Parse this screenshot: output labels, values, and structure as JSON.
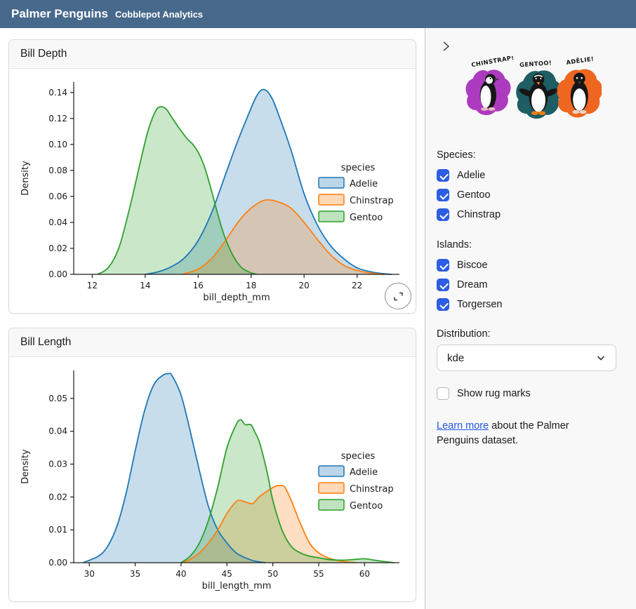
{
  "header": {
    "title": "Palmer Penguins",
    "subtitle": "Cobblepot Analytics"
  },
  "cards": [
    {
      "title": "Bill Depth"
    },
    {
      "title": "Bill Length"
    }
  ],
  "chart_data": [
    {
      "type": "area",
      "kind": "kde",
      "title": "Bill Depth",
      "xlabel": "bill_depth_mm",
      "ylabel": "Density",
      "xlim": [
        11.3,
        23.6
      ],
      "ylim": [
        0,
        0.148
      ],
      "xticks": [
        12,
        14,
        16,
        18,
        20,
        22
      ],
      "yticks": [
        0,
        0.02,
        0.04,
        0.06,
        0.08,
        0.1,
        0.12,
        0.14
      ],
      "grid": false,
      "legend": {
        "title": "species",
        "position": "center right",
        "entries": [
          "Adelie",
          "Chinstrap",
          "Gentoo"
        ]
      },
      "series": [
        {
          "name": "Adelie",
          "color": "#1f77b4",
          "points": [
            [
              14,
              0
            ],
            [
              14.5,
              0.002
            ],
            [
              15,
              0.006
            ],
            [
              15.5,
              0.013
            ],
            [
              16,
              0.026
            ],
            [
              16.5,
              0.047
            ],
            [
              17,
              0.075
            ],
            [
              17.5,
              0.103
            ],
            [
              18,
              0.128
            ],
            [
              18.2,
              0.137
            ],
            [
              18.4,
              0.142
            ],
            [
              18.6,
              0.141
            ],
            [
              18.8,
              0.135
            ],
            [
              19,
              0.125
            ],
            [
              19.5,
              0.096
            ],
            [
              20,
              0.062
            ],
            [
              20.5,
              0.038
            ],
            [
              21,
              0.022
            ],
            [
              21.5,
              0.012
            ],
            [
              22,
              0.005
            ],
            [
              22.5,
              0.002
            ],
            [
              23,
              0.0005
            ],
            [
              23.3,
              0
            ]
          ]
        },
        {
          "name": "Chinstrap",
          "color": "#ff7f0e",
          "points": [
            [
              15.4,
              0
            ],
            [
              16,
              0.004
            ],
            [
              16.5,
              0.012
            ],
            [
              17,
              0.025
            ],
            [
              17.5,
              0.04
            ],
            [
              18,
              0.051
            ],
            [
              18.5,
              0.057
            ],
            [
              19,
              0.056
            ],
            [
              19.5,
              0.051
            ],
            [
              20,
              0.04
            ],
            [
              20.5,
              0.027
            ],
            [
              21,
              0.015
            ],
            [
              21.5,
              0.007
            ],
            [
              22,
              0.003
            ],
            [
              22.5,
              0.001
            ],
            [
              23,
              0
            ]
          ]
        },
        {
          "name": "Gentoo",
          "color": "#2ca02c",
          "points": [
            [
              12.2,
              0
            ],
            [
              12.6,
              0.005
            ],
            [
              13,
              0.02
            ],
            [
              13.4,
              0.05
            ],
            [
              13.8,
              0.085
            ],
            [
              14.1,
              0.11
            ],
            [
              14.4,
              0.126
            ],
            [
              14.6,
              0.129
            ],
            [
              14.8,
              0.127
            ],
            [
              15,
              0.121
            ],
            [
              15.3,
              0.112
            ],
            [
              15.6,
              0.104
            ],
            [
              15.8,
              0.1
            ],
            [
              16,
              0.094
            ],
            [
              16.2,
              0.085
            ],
            [
              16.4,
              0.072
            ],
            [
              16.6,
              0.057
            ],
            [
              16.8,
              0.042
            ],
            [
              17,
              0.029
            ],
            [
              17.3,
              0.015
            ],
            [
              17.6,
              0.006
            ],
            [
              17.9,
              0.002
            ],
            [
              18.2,
              0
            ]
          ]
        }
      ]
    },
    {
      "type": "area",
      "kind": "kde",
      "title": "Bill Length",
      "xlabel": "bill_length_mm",
      "ylabel": "Density",
      "xlim": [
        28.3,
        63.8
      ],
      "ylim": [
        0,
        0.0585
      ],
      "xticks": [
        30,
        35,
        40,
        45,
        50,
        55,
        60
      ],
      "yticks": [
        0,
        0.01,
        0.02,
        0.03,
        0.04,
        0.05
      ],
      "grid": false,
      "legend": {
        "title": "species",
        "position": "center right",
        "entries": [
          "Adelie",
          "Chinstrap",
          "Gentoo"
        ]
      },
      "series": [
        {
          "name": "Adelie",
          "color": "#1f77b4",
          "points": [
            [
              29.3,
              0
            ],
            [
              31,
              0.002
            ],
            [
              32,
              0.005
            ],
            [
              33,
              0.011
            ],
            [
              34,
              0.021
            ],
            [
              35,
              0.034
            ],
            [
              36,
              0.046
            ],
            [
              37,
              0.054
            ],
            [
              38,
              0.057
            ],
            [
              38.6,
              0.0575
            ],
            [
              39,
              0.057
            ],
            [
              40,
              0.051
            ],
            [
              41,
              0.04
            ],
            [
              42,
              0.028
            ],
            [
              43,
              0.017
            ],
            [
              44,
              0.01
            ],
            [
              45,
              0.006
            ],
            [
              46,
              0.003
            ],
            [
              47,
              0.0015
            ],
            [
              48,
              0.0005
            ],
            [
              49.2,
              0
            ]
          ]
        },
        {
          "name": "Chinstrap",
          "color": "#ff7f0e",
          "points": [
            [
              40.2,
              0
            ],
            [
              41,
              0.001
            ],
            [
              42,
              0.003
            ],
            [
              43,
              0.006
            ],
            [
              44,
              0.01
            ],
            [
              45,
              0.015
            ],
            [
              45.8,
              0.018
            ],
            [
              46.3,
              0.019
            ],
            [
              47,
              0.0185
            ],
            [
              47.8,
              0.018
            ],
            [
              48.5,
              0.02
            ],
            [
              49.5,
              0.022
            ],
            [
              50.3,
              0.0233
            ],
            [
              50.8,
              0.0235
            ],
            [
              51.3,
              0.023
            ],
            [
              52,
              0.019
            ],
            [
              53,
              0.012
            ],
            [
              54,
              0.006
            ],
            [
              55,
              0.003
            ],
            [
              56,
              0.0015
            ],
            [
              57,
              0.0007
            ],
            [
              58,
              0.0003
            ],
            [
              59,
              0
            ]
          ]
        },
        {
          "name": "Gentoo",
          "color": "#2ca02c",
          "points": [
            [
              40,
              0
            ],
            [
              41,
              0.002
            ],
            [
              42,
              0.006
            ],
            [
              43,
              0.013
            ],
            [
              44,
              0.023
            ],
            [
              45,
              0.035
            ],
            [
              46,
              0.042
            ],
            [
              46.5,
              0.0435
            ],
            [
              47,
              0.042
            ],
            [
              47.6,
              0.042
            ],
            [
              48,
              0.04
            ],
            [
              48.5,
              0.037
            ],
            [
              49,
              0.032
            ],
            [
              49.5,
              0.026
            ],
            [
              50,
              0.019
            ],
            [
              51,
              0.01
            ],
            [
              52,
              0.005
            ],
            [
              53,
              0.003
            ],
            [
              54,
              0.002
            ],
            [
              55,
              0.0015
            ],
            [
              56,
              0.001
            ],
            [
              57,
              0.0008
            ],
            [
              58,
              0.0008
            ],
            [
              59,
              0.001
            ],
            [
              60,
              0.0012
            ],
            [
              61,
              0.0008
            ],
            [
              62,
              0.0004
            ],
            [
              63.2,
              0
            ]
          ]
        }
      ]
    }
  ],
  "sidebar": {
    "artwork": {
      "labels": [
        "CHINSTRAP!",
        "GENTOO!",
        "ADĒLIE!"
      ]
    },
    "species": {
      "label": "Species:",
      "options": [
        {
          "label": "Adelie",
          "checked": true
        },
        {
          "label": "Gentoo",
          "checked": true
        },
        {
          "label": "Chinstrap",
          "checked": true
        }
      ]
    },
    "islands": {
      "label": "Islands:",
      "options": [
        {
          "label": "Biscoe",
          "checked": true
        },
        {
          "label": "Dream",
          "checked": true
        },
        {
          "label": "Torgersen",
          "checked": true
        }
      ]
    },
    "distribution": {
      "label": "Distribution:",
      "value": "kde"
    },
    "rug": {
      "label": "Show rug marks",
      "checked": false
    },
    "learn_more": {
      "link_text": "Learn more",
      "rest_text": " about the Palmer Penguins dataset."
    }
  },
  "icons": {
    "collapse": "chevron-right",
    "select_caret": "chevron-down",
    "expand": "expand-corners",
    "checked": "checkmark"
  },
  "colors": {
    "header_bg": "#47698c",
    "checkbox_blue": "#2d5de2",
    "link_blue": "#2456e4",
    "adelie": "#1f77b4",
    "chinstrap": "#ff7f0e",
    "gentoo": "#2ca02c",
    "splash_chinstrap": "#ad3bbf",
    "splash_gentoo": "#1e5e63",
    "splash_adelie": "#ef6620"
  }
}
